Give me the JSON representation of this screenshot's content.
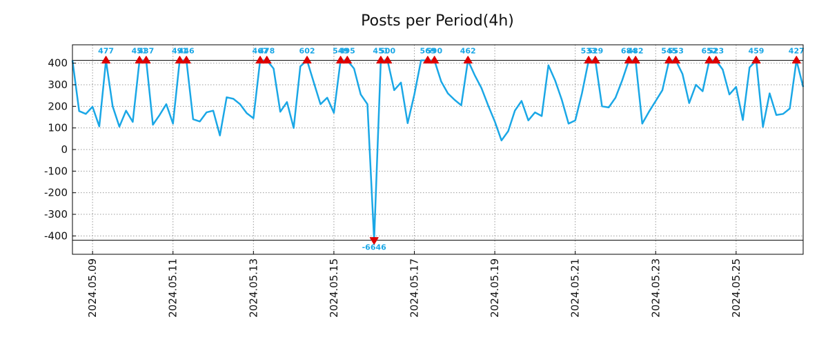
{
  "chart_data": {
    "type": "line",
    "title": "Posts per Period(4h)",
    "xlabel": "",
    "ylabel": "",
    "ylim": [
      -485,
      485
    ],
    "yticks": [
      -400,
      -300,
      -200,
      -100,
      0,
      100,
      200,
      300,
      400
    ],
    "clip_high": 413,
    "clip_low": -420,
    "x_tick_labels": [
      "2024.05.09",
      "2024.05.11",
      "2024.05.13",
      "2024.05.15",
      "2024.05.17",
      "2024.05.19",
      "2024.05.21",
      "2024.05.23",
      "2024.05.25"
    ],
    "x_tick_index": [
      3,
      15,
      27,
      39,
      51,
      63,
      75,
      87,
      99
    ],
    "series": [
      {
        "name": "posts",
        "color": "#1aa7e6",
        "values": [
          413,
          178,
          165,
          198,
          107,
          413,
          200,
          106,
          180,
          128,
          413,
          413,
          115,
          160,
          210,
          120,
          413,
          413,
          140,
          130,
          172,
          180,
          65,
          242,
          235,
          210,
          168,
          145,
          413,
          413,
          375,
          175,
          220,
          100,
          385,
          413,
          310,
          210,
          240,
          170,
          413,
          413,
          375,
          255,
          210,
          -420,
          413,
          413,
          275,
          310,
          122,
          255,
          413,
          413,
          413,
          315,
          260,
          230,
          205,
          413,
          345,
          285,
          205,
          130,
          42,
          85,
          180,
          225,
          135,
          172,
          155,
          390,
          320,
          230,
          120,
          135,
          260,
          413,
          413,
          200,
          195,
          240,
          320,
          413,
          413,
          120,
          175,
          225,
          275,
          413,
          413,
          350,
          215,
          300,
          270,
          413,
          413,
          370,
          255,
          290,
          137,
          380,
          413,
          105,
          260,
          160,
          165,
          190,
          413,
          290
        ]
      }
    ],
    "peaks": [
      {
        "index": 5,
        "label": "477",
        "kind": "high"
      },
      {
        "index": 10,
        "label": "451",
        "kind": "high"
      },
      {
        "index": 11,
        "label": "437",
        "kind": "high"
      },
      {
        "index": 16,
        "label": "491",
        "kind": "high"
      },
      {
        "index": 17,
        "label": "446",
        "kind": "high"
      },
      {
        "index": 28,
        "label": "467",
        "kind": "high"
      },
      {
        "index": 29,
        "label": "478",
        "kind": "high"
      },
      {
        "index": 35,
        "label": "602",
        "kind": "high"
      },
      {
        "index": 40,
        "label": "549",
        "kind": "high"
      },
      {
        "index": 41,
        "label": "495",
        "kind": "high"
      },
      {
        "index": 45,
        "label": "-6646",
        "kind": "low"
      },
      {
        "index": 46,
        "label": "451",
        "kind": "high"
      },
      {
        "index": 47,
        "label": "500",
        "kind": "high"
      },
      {
        "index": 53,
        "label": "569",
        "kind": "high"
      },
      {
        "index": 54,
        "label": "590",
        "kind": "high"
      },
      {
        "index": 59,
        "label": "462",
        "kind": "high"
      },
      {
        "index": 77,
        "label": "533",
        "kind": "high"
      },
      {
        "index": 78,
        "label": "529",
        "kind": "high"
      },
      {
        "index": 83,
        "label": "684",
        "kind": "high"
      },
      {
        "index": 84,
        "label": "482",
        "kind": "high"
      },
      {
        "index": 89,
        "label": "545",
        "kind": "high"
      },
      {
        "index": 90,
        "label": "553",
        "kind": "high"
      },
      {
        "index": 95,
        "label": "652",
        "kind": "high"
      },
      {
        "index": 96,
        "label": "523",
        "kind": "high"
      },
      {
        "index": 102,
        "label": "459",
        "kind": "high"
      },
      {
        "index": 108,
        "label": "427",
        "kind": "high"
      }
    ]
  }
}
